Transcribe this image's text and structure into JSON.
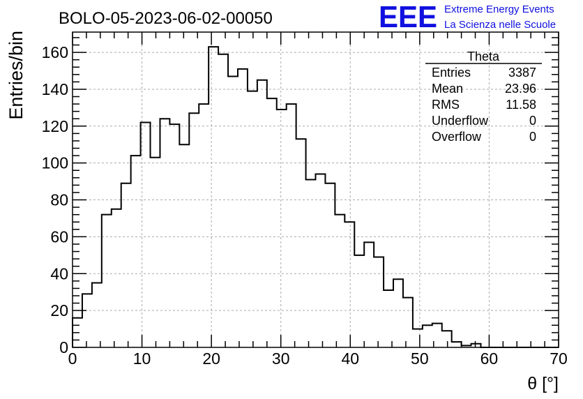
{
  "chart_data": {
    "type": "histogram",
    "title": "BOLO-05-2023-06-02-00050",
    "xlabel": "θ [°]",
    "ylabel": "Entries/bin",
    "xlim": [
      0,
      70
    ],
    "ylim": [
      0,
      171
    ],
    "bin_width": 1.4,
    "x_ticks": [
      0,
      10,
      20,
      30,
      40,
      50,
      60,
      70
    ],
    "y_ticks": [
      0,
      20,
      40,
      60,
      80,
      100,
      120,
      140,
      160
    ],
    "grid": true,
    "values": [
      16,
      29,
      35,
      72,
      75,
      89,
      104,
      122,
      103,
      124,
      121,
      110,
      127,
      132,
      163,
      159,
      147,
      151,
      139,
      145,
      135,
      129,
      132,
      113,
      91,
      94,
      89,
      72,
      68,
      50,
      57,
      49,
      31,
      37,
      27,
      10,
      12,
      13,
      9,
      3,
      1,
      2,
      0,
      0,
      0,
      0,
      0,
      0,
      0,
      0
    ],
    "line_color": "#000000",
    "stats": {
      "title": "Theta",
      "rows": [
        {
          "label": "Entries",
          "value": "3387"
        },
        {
          "label": "Mean",
          "value": "23.96"
        },
        {
          "label": "RMS",
          "value": "11.58"
        },
        {
          "label": "Underflow",
          "value": "0"
        },
        {
          "label": "Overflow",
          "value": "0"
        }
      ]
    }
  },
  "logo": {
    "text": "EEE",
    "line1": "Extreme Energy Events",
    "line2": "La Scienza nelle Scuole",
    "color": "#1010e0"
  }
}
